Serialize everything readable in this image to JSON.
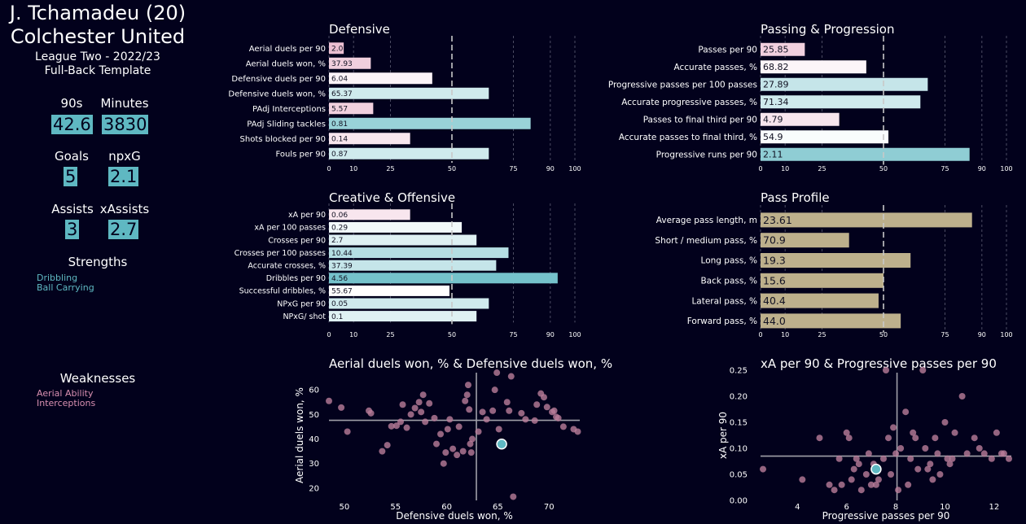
{
  "header": {
    "player": "J. Tchamadeu (20)",
    "club": "Colchester United",
    "league": "League Two - 2022/23",
    "template": "Full-Back Template"
  },
  "stats": [
    {
      "label": "90s",
      "value": "42.6"
    },
    {
      "label": "Minutes",
      "value": "3830"
    },
    {
      "label": "Goals",
      "value": "5"
    },
    {
      "label": "npxG",
      "value": "2.1"
    },
    {
      "label": "Assists",
      "value": "3"
    },
    {
      "label": "xAssists",
      "value": "2.7"
    }
  ],
  "strengths": {
    "title": "Strengths",
    "items": [
      "Dribbling",
      "Ball Carrying"
    ]
  },
  "weaknesses": {
    "title": "Weaknesses",
    "items": [
      "Aerial Ability",
      "Interceptions"
    ]
  },
  "colors": {
    "background": "#02011c",
    "teal": "#5fb8c2",
    "pink": "#e9b6cc",
    "tan": "#bdb08c",
    "strength_text": "#5fb8c2",
    "weakness_text": "#d88fb0"
  },
  "chart_data": [
    {
      "type": "bar",
      "orientation": "horizontal",
      "title": "Defensive",
      "categories": [
        "Aerial duels per 90",
        "Aerial duels won, %",
        "Defensive duels per 90",
        "Defensive duels won, %",
        "PAdj Interceptions",
        "PAdj Sliding tackles",
        "Shots blocked per 90",
        "Fouls per 90"
      ],
      "value_labels": [
        "2.0",
        "37.93",
        "6.04",
        "65.37",
        "5.57",
        "0.81",
        "0.14",
        "0.87"
      ],
      "percentiles": [
        6,
        17,
        42,
        65,
        18,
        82,
        33,
        65
      ],
      "xticks": [
        0,
        10,
        25,
        50,
        75,
        90,
        100
      ],
      "xlim": [
        0,
        100
      ],
      "median_line": 50
    },
    {
      "type": "bar",
      "orientation": "horizontal",
      "title": "Passing & Progression",
      "categories": [
        "Passes per 90",
        "Accurate passes, %",
        "Progressive passes per 100 passes",
        "Accurate progressive passes, %",
        "Passes to final third per 90",
        "Accurate passes to final third, %",
        "Progressive runs per 90"
      ],
      "value_labels": [
        "25.85",
        "68.82",
        "27.89",
        "71.34",
        "4.79",
        "54.9",
        "2.11"
      ],
      "percentiles": [
        18,
        43,
        68,
        65,
        32,
        52,
        85
      ],
      "xticks": [
        0,
        10,
        25,
        50,
        75,
        90,
        100
      ],
      "xlim": [
        0,
        100
      ],
      "median_line": 50
    },
    {
      "type": "bar",
      "orientation": "horizontal",
      "title": "Creative & Offensive",
      "categories": [
        "xA per 90",
        "xA per 100 passes",
        "Crosses per 90",
        "Crosses per 100 passes",
        "Accurate crosses, %",
        "Dribbles per 90",
        "Successful dribbles, %",
        "NPxG per 90",
        "NPxG/ shot"
      ],
      "value_labels": [
        "0.06",
        "0.29",
        "2.7",
        "10.44",
        "37.39",
        "4.56",
        "55.67",
        "0.05",
        "0.1"
      ],
      "percentiles": [
        33,
        54,
        60,
        73,
        68,
        93,
        49,
        65,
        60
      ],
      "xticks": [
        0,
        10,
        25,
        50,
        75,
        90,
        100
      ],
      "xlim": [
        0,
        100
      ],
      "median_line": 50
    },
    {
      "type": "bar",
      "orientation": "horizontal",
      "title": "Pass Profile",
      "categories": [
        "Average pass length, m",
        "Short / medium pass, %",
        "Long pass, %",
        "Back pass, %",
        "Lateral pass, %",
        "Forward pass, %"
      ],
      "value_labels": [
        "23.61",
        "70.9",
        "19.3",
        "15.6",
        "40.4",
        "44.0"
      ],
      "percentiles": [
        86,
        36,
        61,
        50,
        48,
        57
      ],
      "xticks": [
        0,
        10,
        25,
        50,
        75,
        90,
        100
      ],
      "xlim": [
        0,
        100
      ],
      "median_line": 50
    },
    {
      "type": "scatter",
      "title": "Aerial duels won, % & Defensive duels won, %",
      "xlabel": "Defensive duels won, %",
      "ylabel": "Aerial duels won, %",
      "xlim": [
        48.5,
        73
      ],
      "ylim": [
        15,
        68
      ],
      "xticks": [
        50,
        55,
        60,
        65,
        70
      ],
      "yticks": [
        20,
        30,
        40,
        50,
        60
      ],
      "x_ref": 62.9,
      "y_ref": 47.6,
      "highlight": {
        "x": 65.37,
        "y": 37.93
      },
      "points": [
        [
          48.5,
          55.5
        ],
        [
          49.7,
          52.8
        ],
        [
          50.3,
          43
        ],
        [
          52.4,
          51.5
        ],
        [
          52.6,
          50.5
        ],
        [
          53.7,
          35
        ],
        [
          54.2,
          37.5
        ],
        [
          54.6,
          45.2
        ],
        [
          55.1,
          45.4
        ],
        [
          55.5,
          47
        ],
        [
          55.7,
          54
        ],
        [
          56.1,
          44.6
        ],
        [
          56.5,
          50
        ],
        [
          56.9,
          52.6
        ],
        [
          57.3,
          55
        ],
        [
          57.5,
          51
        ],
        [
          57.7,
          58
        ],
        [
          57.9,
          47
        ],
        [
          58.3,
          54.5
        ],
        [
          58.8,
          48.5
        ],
        [
          59,
          38
        ],
        [
          59.4,
          42
        ],
        [
          59.7,
          30
        ],
        [
          59.9,
          34.5
        ],
        [
          60.1,
          44
        ],
        [
          60.3,
          48
        ],
        [
          60.6,
          36
        ],
        [
          61,
          33.5
        ],
        [
          61.2,
          45
        ],
        [
          61.6,
          35
        ],
        [
          61.8,
          55.5
        ],
        [
          62,
          58
        ],
        [
          62.1,
          62
        ],
        [
          62.2,
          52
        ],
        [
          62.3,
          38
        ],
        [
          62.4,
          34.5
        ],
        [
          62.5,
          40
        ],
        [
          63.1,
          43
        ],
        [
          63.5,
          51
        ],
        [
          63.9,
          48
        ],
        [
          64.5,
          51.5
        ],
        [
          64.7,
          60
        ],
        [
          64.9,
          67
        ],
        [
          65.1,
          44
        ],
        [
          65.9,
          55
        ],
        [
          66.1,
          51.5
        ],
        [
          66.3,
          65.5
        ],
        [
          66.5,
          16.5
        ],
        [
          67.3,
          50.5
        ],
        [
          67.7,
          48
        ],
        [
          68.6,
          47.5
        ],
        [
          68.8,
          54
        ],
        [
          69.2,
          58.5
        ],
        [
          69.5,
          57
        ],
        [
          69.8,
          53
        ],
        [
          70.3,
          51
        ],
        [
          70.5,
          51.5
        ],
        [
          70.7,
          49
        ],
        [
          70.9,
          48.5
        ],
        [
          71.4,
          45
        ],
        [
          72.4,
          44
        ],
        [
          72.8,
          43
        ]
      ]
    },
    {
      "type": "scatter",
      "title": "xA per 90 & Progressive passes per 90",
      "xlabel": "Progressive passes per 90",
      "ylabel": "xA per 90",
      "xlim": [
        2.5,
        12.7
      ],
      "ylim": [
        0,
        0.25
      ],
      "xticks": [
        4,
        6,
        8,
        10,
        12
      ],
      "yticks": [
        0.0,
        0.05,
        0.1,
        0.15,
        0.2,
        0.25
      ],
      "x_ref": 8.05,
      "y_ref": 0.085,
      "highlight": {
        "x": 7.2,
        "y": 0.06
      },
      "points": [
        [
          2.6,
          0.06
        ],
        [
          4.2,
          0.04
        ],
        [
          4.9,
          0.12
        ],
        [
          5.3,
          0.03
        ],
        [
          5.5,
          0.02
        ],
        [
          5.7,
          0.08
        ],
        [
          5.8,
          0.03
        ],
        [
          6,
          0.13
        ],
        [
          6.1,
          0.12
        ],
        [
          6.2,
          0.04
        ],
        [
          6.3,
          0.06
        ],
        [
          6.4,
          0.08
        ],
        [
          6.5,
          0.07
        ],
        [
          6.6,
          0.02
        ],
        [
          6.8,
          0.05
        ],
        [
          6.9,
          0.09
        ],
        [
          7,
          0.03
        ],
        [
          7.1,
          0.07
        ],
        [
          7.2,
          0.03
        ],
        [
          7.3,
          0.04
        ],
        [
          7.5,
          0.08
        ],
        [
          7.6,
          0.25
        ],
        [
          7.7,
          0.12
        ],
        [
          7.8,
          0.05
        ],
        [
          7.9,
          0.14
        ],
        [
          8,
          0.09
        ],
        [
          8.1,
          0.02
        ],
        [
          8.2,
          0.1
        ],
        [
          8.4,
          0.17
        ],
        [
          8.5,
          0.03
        ],
        [
          8.6,
          0.08
        ],
        [
          8.7,
          0.13
        ],
        [
          8.8,
          0.12
        ],
        [
          8.9,
          0.06
        ],
        [
          9.1,
          0.25
        ],
        [
          9.2,
          0.1
        ],
        [
          9.3,
          0.06
        ],
        [
          9.4,
          0.07
        ],
        [
          9.5,
          0.04
        ],
        [
          9.6,
          0.12
        ],
        [
          9.7,
          0.09
        ],
        [
          9.8,
          0.05
        ],
        [
          10,
          0.15
        ],
        [
          10.1,
          0.08
        ],
        [
          10.2,
          0.07
        ],
        [
          10.3,
          0.08
        ],
        [
          10.4,
          0.13
        ],
        [
          10.7,
          0.2
        ],
        [
          10.9,
          0.09
        ],
        [
          11.2,
          0.12
        ],
        [
          11.4,
          0.1
        ],
        [
          11.6,
          0.09
        ],
        [
          11.9,
          0.08
        ],
        [
          12.1,
          0.13
        ],
        [
          12.3,
          0.09
        ],
        [
          12.4,
          0.09
        ],
        [
          12.6,
          0.08
        ]
      ]
    }
  ]
}
